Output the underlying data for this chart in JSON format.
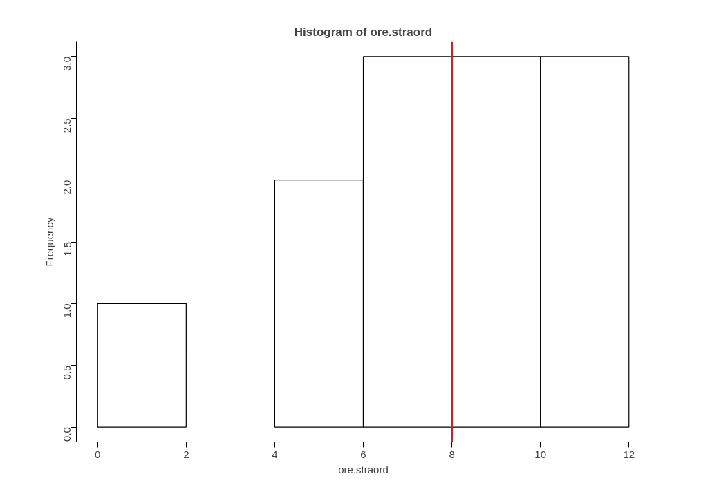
{
  "chart_data": {
    "type": "histogram",
    "title": "Histogram of ore.straord",
    "xlabel": "ore.straord",
    "ylabel": "Frequency",
    "bins": [
      0,
      2,
      4,
      6,
      8,
      10,
      12
    ],
    "values": [
      1,
      0,
      2,
      3,
      3,
      3
    ],
    "color": "#ffffff",
    "xlim": [
      -0.48,
      12.48
    ],
    "ylim": [
      -0.12,
      3.12
    ],
    "xticks": [
      0,
      2,
      4,
      6,
      8,
      10,
      12
    ],
    "yticks": [
      {
        "value": 0,
        "label": "0.0"
      },
      {
        "value": 0.5,
        "label": "0.5"
      },
      {
        "value": 1,
        "label": "1.0"
      },
      {
        "value": 1.5,
        "label": "1.5"
      },
      {
        "value": 2,
        "label": "2.0"
      },
      {
        "value": 2.5,
        "label": "2.5"
      },
      {
        "value": 3,
        "label": "3.0"
      }
    ],
    "ref_lines": [
      {
        "axis": "x",
        "value": 8,
        "label": null,
        "color": "#c0272d"
      }
    ],
    "grid": false
  }
}
